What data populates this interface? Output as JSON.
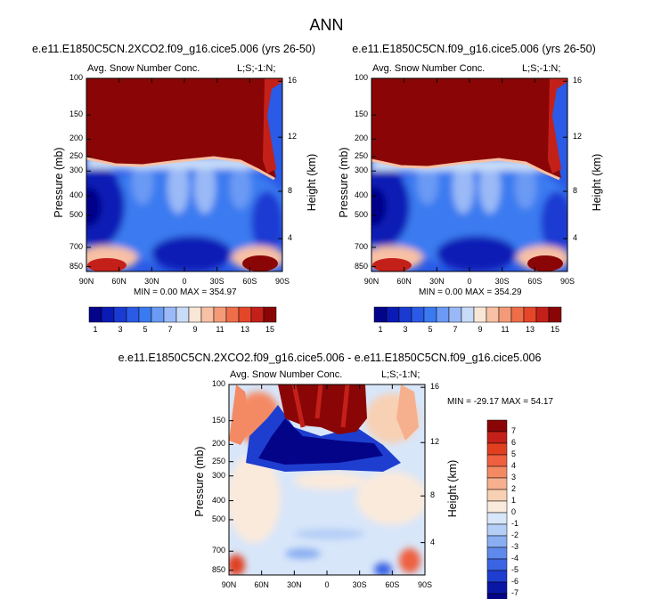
{
  "page_title": "ANN",
  "chart_data": [
    {
      "type": "heatmap",
      "title": "e.e11.E1850C5CN.2XCO2.f09_g16.cice5.006 (yrs 26-50)",
      "left_label": "Avg. Snow Number Conc.",
      "right_label": "L;S;-1:N;",
      "xlabel": "",
      "ylabel": "Pressure (mb)",
      "y2label": "Height (km)",
      "x_ticks": [
        "90N",
        "60N",
        "30N",
        "0",
        "30S",
        "60S",
        "90S"
      ],
      "y_ticks": [
        "100",
        "150",
        "200",
        "250",
        "300",
        "400",
        "500",
        "700",
        "850"
      ],
      "y2_ticks": [
        "16",
        "12",
        "8",
        "4"
      ],
      "stats": "MIN =   0.00  MAX = 354.97",
      "min": 0.0,
      "max": 354.97,
      "colorbar": {
        "orientation": "horizontal",
        "labels": [
          "1",
          "3",
          "5",
          "7",
          "9",
          "11",
          "13",
          "15"
        ]
      }
    },
    {
      "type": "heatmap",
      "title": "e.e11.E1850C5CN.f09_g16.cice5.006 (yrs 26-50)",
      "left_label": "Avg. Snow Number Conc.",
      "right_label": "L;S;-1:N;",
      "xlabel": "",
      "ylabel": "Pressure (mb)",
      "y2label": "Height (km)",
      "x_ticks": [
        "90N",
        "60N",
        "30N",
        "0",
        "30S",
        "60S",
        "90S"
      ],
      "y_ticks": [
        "100",
        "150",
        "200",
        "250",
        "300",
        "400",
        "500",
        "700",
        "850"
      ],
      "y2_ticks": [
        "16",
        "12",
        "8",
        "4"
      ],
      "stats": "MIN =   0.00  MAX = 354.29",
      "min": 0.0,
      "max": 354.29,
      "colorbar": {
        "orientation": "horizontal",
        "labels": [
          "1",
          "3",
          "5",
          "7",
          "9",
          "11",
          "13",
          "15"
        ]
      }
    },
    {
      "type": "heatmap",
      "title": "e.e11.E1850C5CN.2XCO2.f09_g16.cice5.006 - e.e11.E1850C5CN.f09_g16.cice5.006",
      "left_label": "Avg. Snow Number Conc.",
      "right_label": "L;S;-1:N;",
      "xlabel": "",
      "ylabel": "Pressure (mb)",
      "y2label": "Height (km)",
      "x_ticks": [
        "90N",
        "60N",
        "30N",
        "0",
        "30S",
        "60S",
        "90S"
      ],
      "y_ticks": [
        "100",
        "150",
        "200",
        "250",
        "300",
        "400",
        "500",
        "700",
        "850"
      ],
      "y2_ticks": [
        "16",
        "12",
        "8",
        "4"
      ],
      "stats": "MIN = -29.17  MAX =  54.17",
      "min": -29.17,
      "max": 54.17,
      "colorbar": {
        "orientation": "vertical",
        "labels": [
          "7",
          "6",
          "5",
          "4",
          "3",
          "2",
          "1",
          "0",
          "-1",
          "-2",
          "-3",
          "-4",
          "-5",
          "-6",
          "-7"
        ]
      }
    }
  ],
  "colors": {
    "seq": [
      "#04048a",
      "#0a1ab5",
      "#1a3ad2",
      "#2a5ae6",
      "#3a7af0",
      "#6a9af4",
      "#9ab9f6",
      "#c8dcf8",
      "#f8e6d6",
      "#f8c0a4",
      "#f49a78",
      "#ee6e4a",
      "#e4462a",
      "#c4201a",
      "#8a0606"
    ],
    "div": [
      "#8a0606",
      "#c4201a",
      "#e04020",
      "#ee6040",
      "#f48a64",
      "#f6b08e",
      "#f8d0b4",
      "#faeadc",
      "#d8e6fa",
      "#b4cef6",
      "#8aaef2",
      "#5e8aec",
      "#3a64e2",
      "#1e3ed0",
      "#0a16a4",
      "#040488"
    ]
  }
}
